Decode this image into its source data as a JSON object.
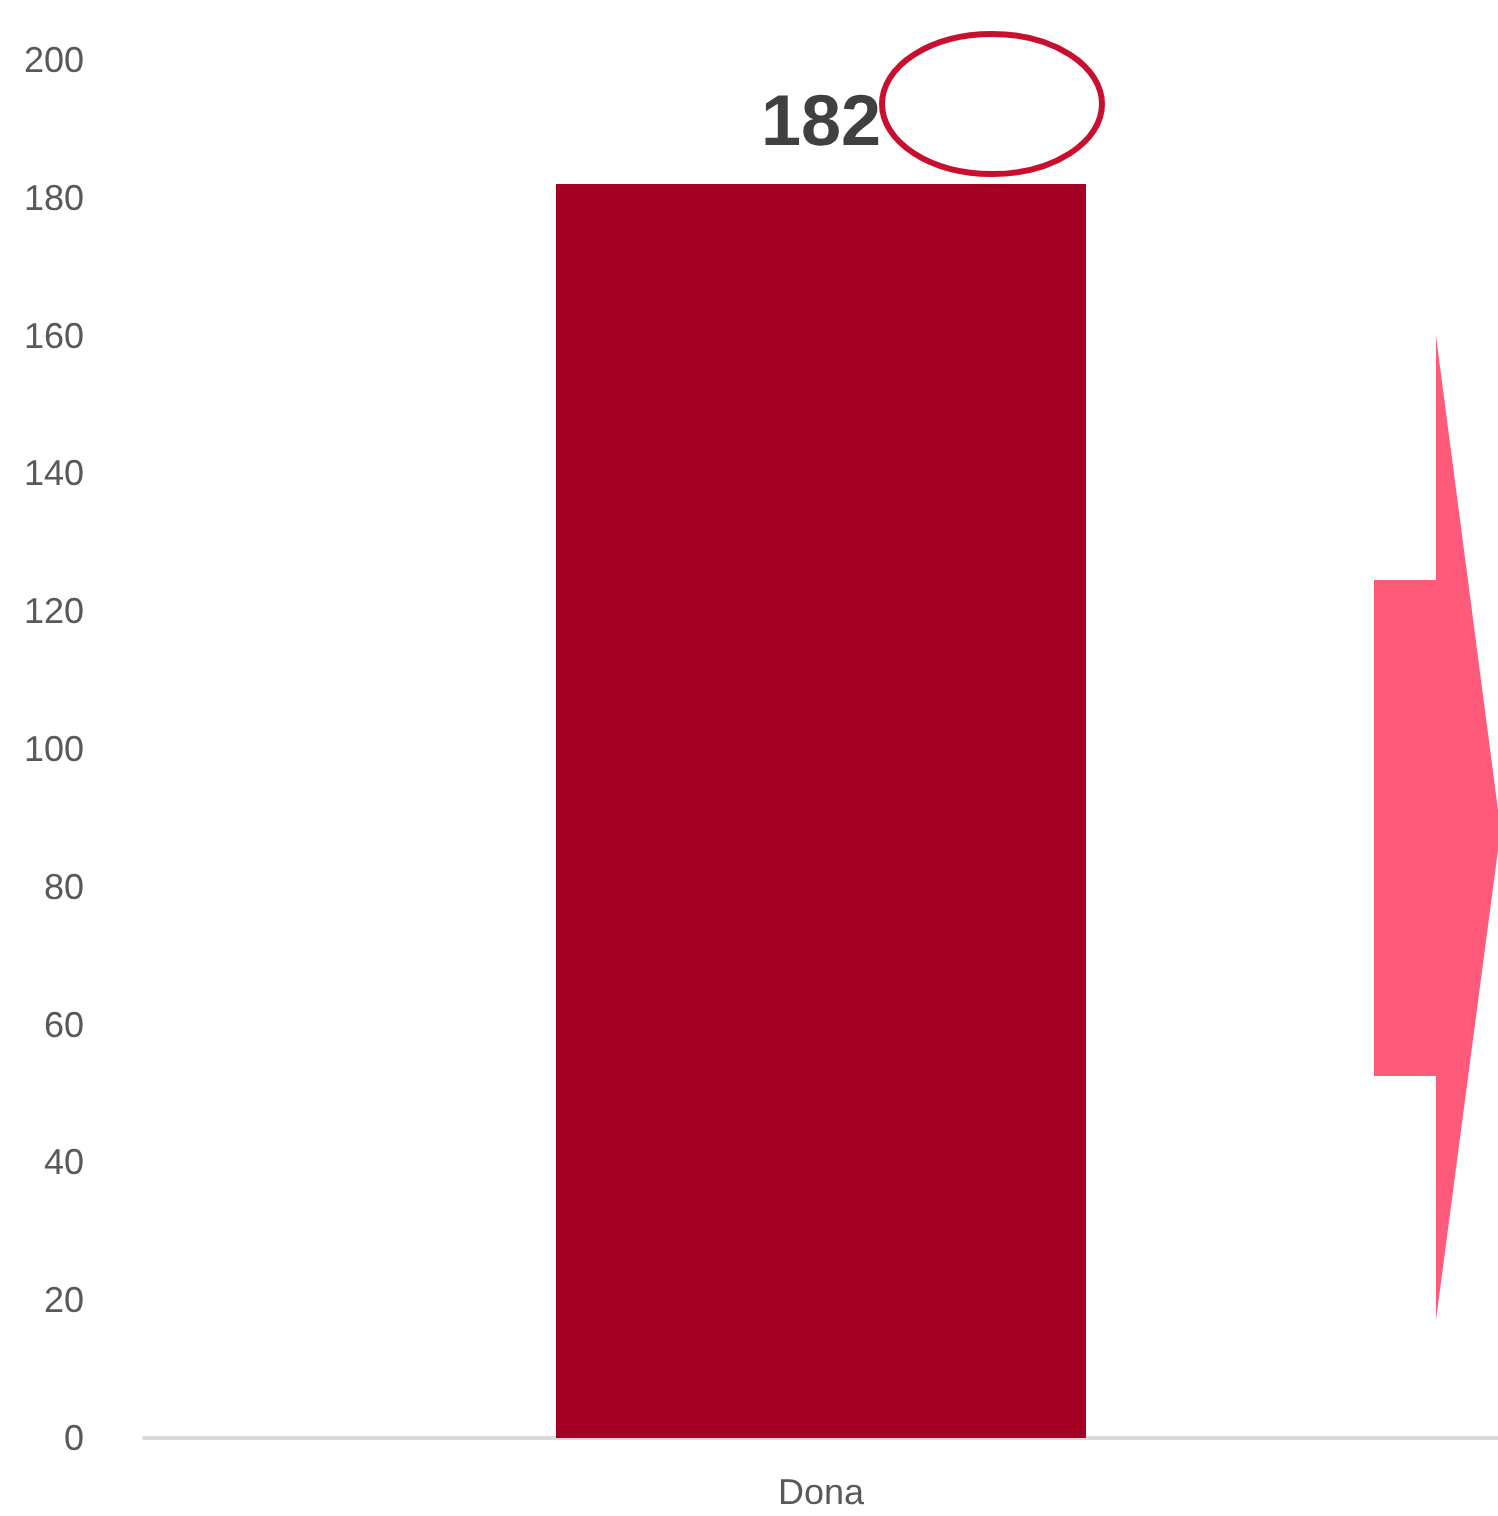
{
  "chart_data": {
    "type": "bar",
    "categories": [
      "Dona"
    ],
    "values": [
      182
    ],
    "color": "#a30024",
    "ylim": [
      0,
      200
    ],
    "yticks": [
      0,
      20,
      40,
      60,
      80,
      100,
      120,
      140,
      160,
      180,
      200
    ],
    "grid": false,
    "data_labels": true
  }
}
